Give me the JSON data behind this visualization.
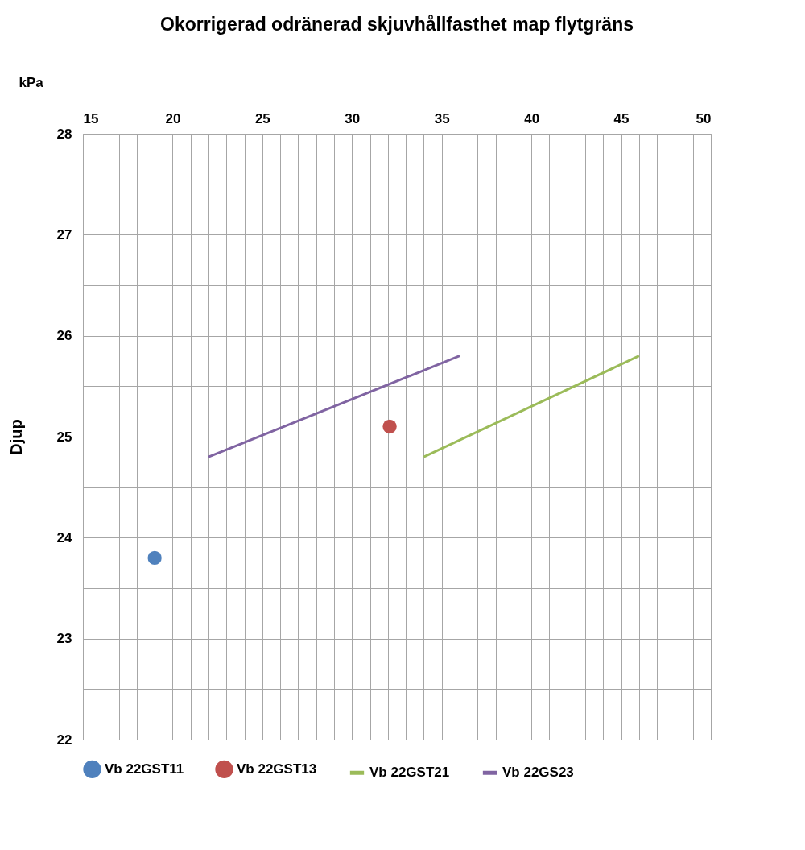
{
  "chart_data": {
    "type": "scatter",
    "title": "Okorrigerad odränerad skjuvhållfasthet map flytgräns",
    "xlabel": "kPa",
    "ylabel": "Djup",
    "xlim": [
      15,
      50
    ],
    "ylim": [
      22,
      28
    ],
    "xticks": [
      15,
      {
        "value": 16,
        "label": null
      },
      {
        "value": 17,
        "label": null
      },
      {
        "value": 18,
        "label": null
      },
      {
        "value": 19,
        "label": null
      },
      20,
      {
        "value": 21,
        "label": null
      },
      {
        "value": 22,
        "label": null
      },
      {
        "value": 23,
        "label": null
      },
      {
        "value": 24,
        "label": null
      },
      25,
      {
        "value": 26,
        "label": null
      },
      {
        "value": 27,
        "label": null
      },
      {
        "value": 28,
        "label": null
      },
      {
        "value": 29,
        "label": null
      },
      30,
      {
        "value": 31,
        "label": null
      },
      {
        "value": 32,
        "label": null
      },
      {
        "value": 33,
        "label": null
      },
      {
        "value": 34,
        "label": null
      },
      35,
      {
        "value": 36,
        "label": null
      },
      {
        "value": 37,
        "label": null
      },
      {
        "value": 38,
        "label": null
      },
      {
        "value": 39,
        "label": null
      },
      40,
      {
        "value": 41,
        "label": null
      },
      {
        "value": 42,
        "label": null
      },
      {
        "value": 43,
        "label": null
      },
      {
        "value": 44,
        "label": null
      },
      45,
      {
        "value": 46,
        "label": null
      },
      {
        "value": 47,
        "label": null
      },
      {
        "value": 48,
        "label": null
      },
      {
        "value": 49,
        "label": null
      },
      50
    ],
    "yticks": [
      22,
      {
        "value": 22.5,
        "label": null
      },
      23,
      {
        "value": 23.5,
        "label": null
      },
      24,
      {
        "value": 24.5,
        "label": null
      },
      25,
      {
        "value": 25.5,
        "label": null
      },
      26,
      {
        "value": 26.5,
        "label": null
      },
      27,
      {
        "value": 27.5,
        "label": null
      },
      28
    ],
    "grid": true,
    "legend": "bottom",
    "series": [
      {
        "name": "Vb 22GST11",
        "type": "scatter",
        "marker": "circle",
        "color": "#4f81bd",
        "x": [
          19
        ],
        "values": [
          23.8
        ]
      },
      {
        "name": "Vb 22GST13",
        "type": "scatter",
        "marker": "circle",
        "color": "#c0504d",
        "x": [
          32.1
        ],
        "values": [
          25.1
        ]
      },
      {
        "name": "Vb 22GST21",
        "type": "line",
        "line_style": "solid",
        "color": "#9bbb59",
        "x": [
          34,
          46
        ],
        "values": [
          24.8,
          25.8
        ]
      },
      {
        "name": "Vb 22GS23",
        "type": "line",
        "line_style": "solid",
        "color": "#8064a2",
        "x": [
          22,
          36
        ],
        "values": [
          24.8,
          25.8
        ]
      }
    ]
  }
}
